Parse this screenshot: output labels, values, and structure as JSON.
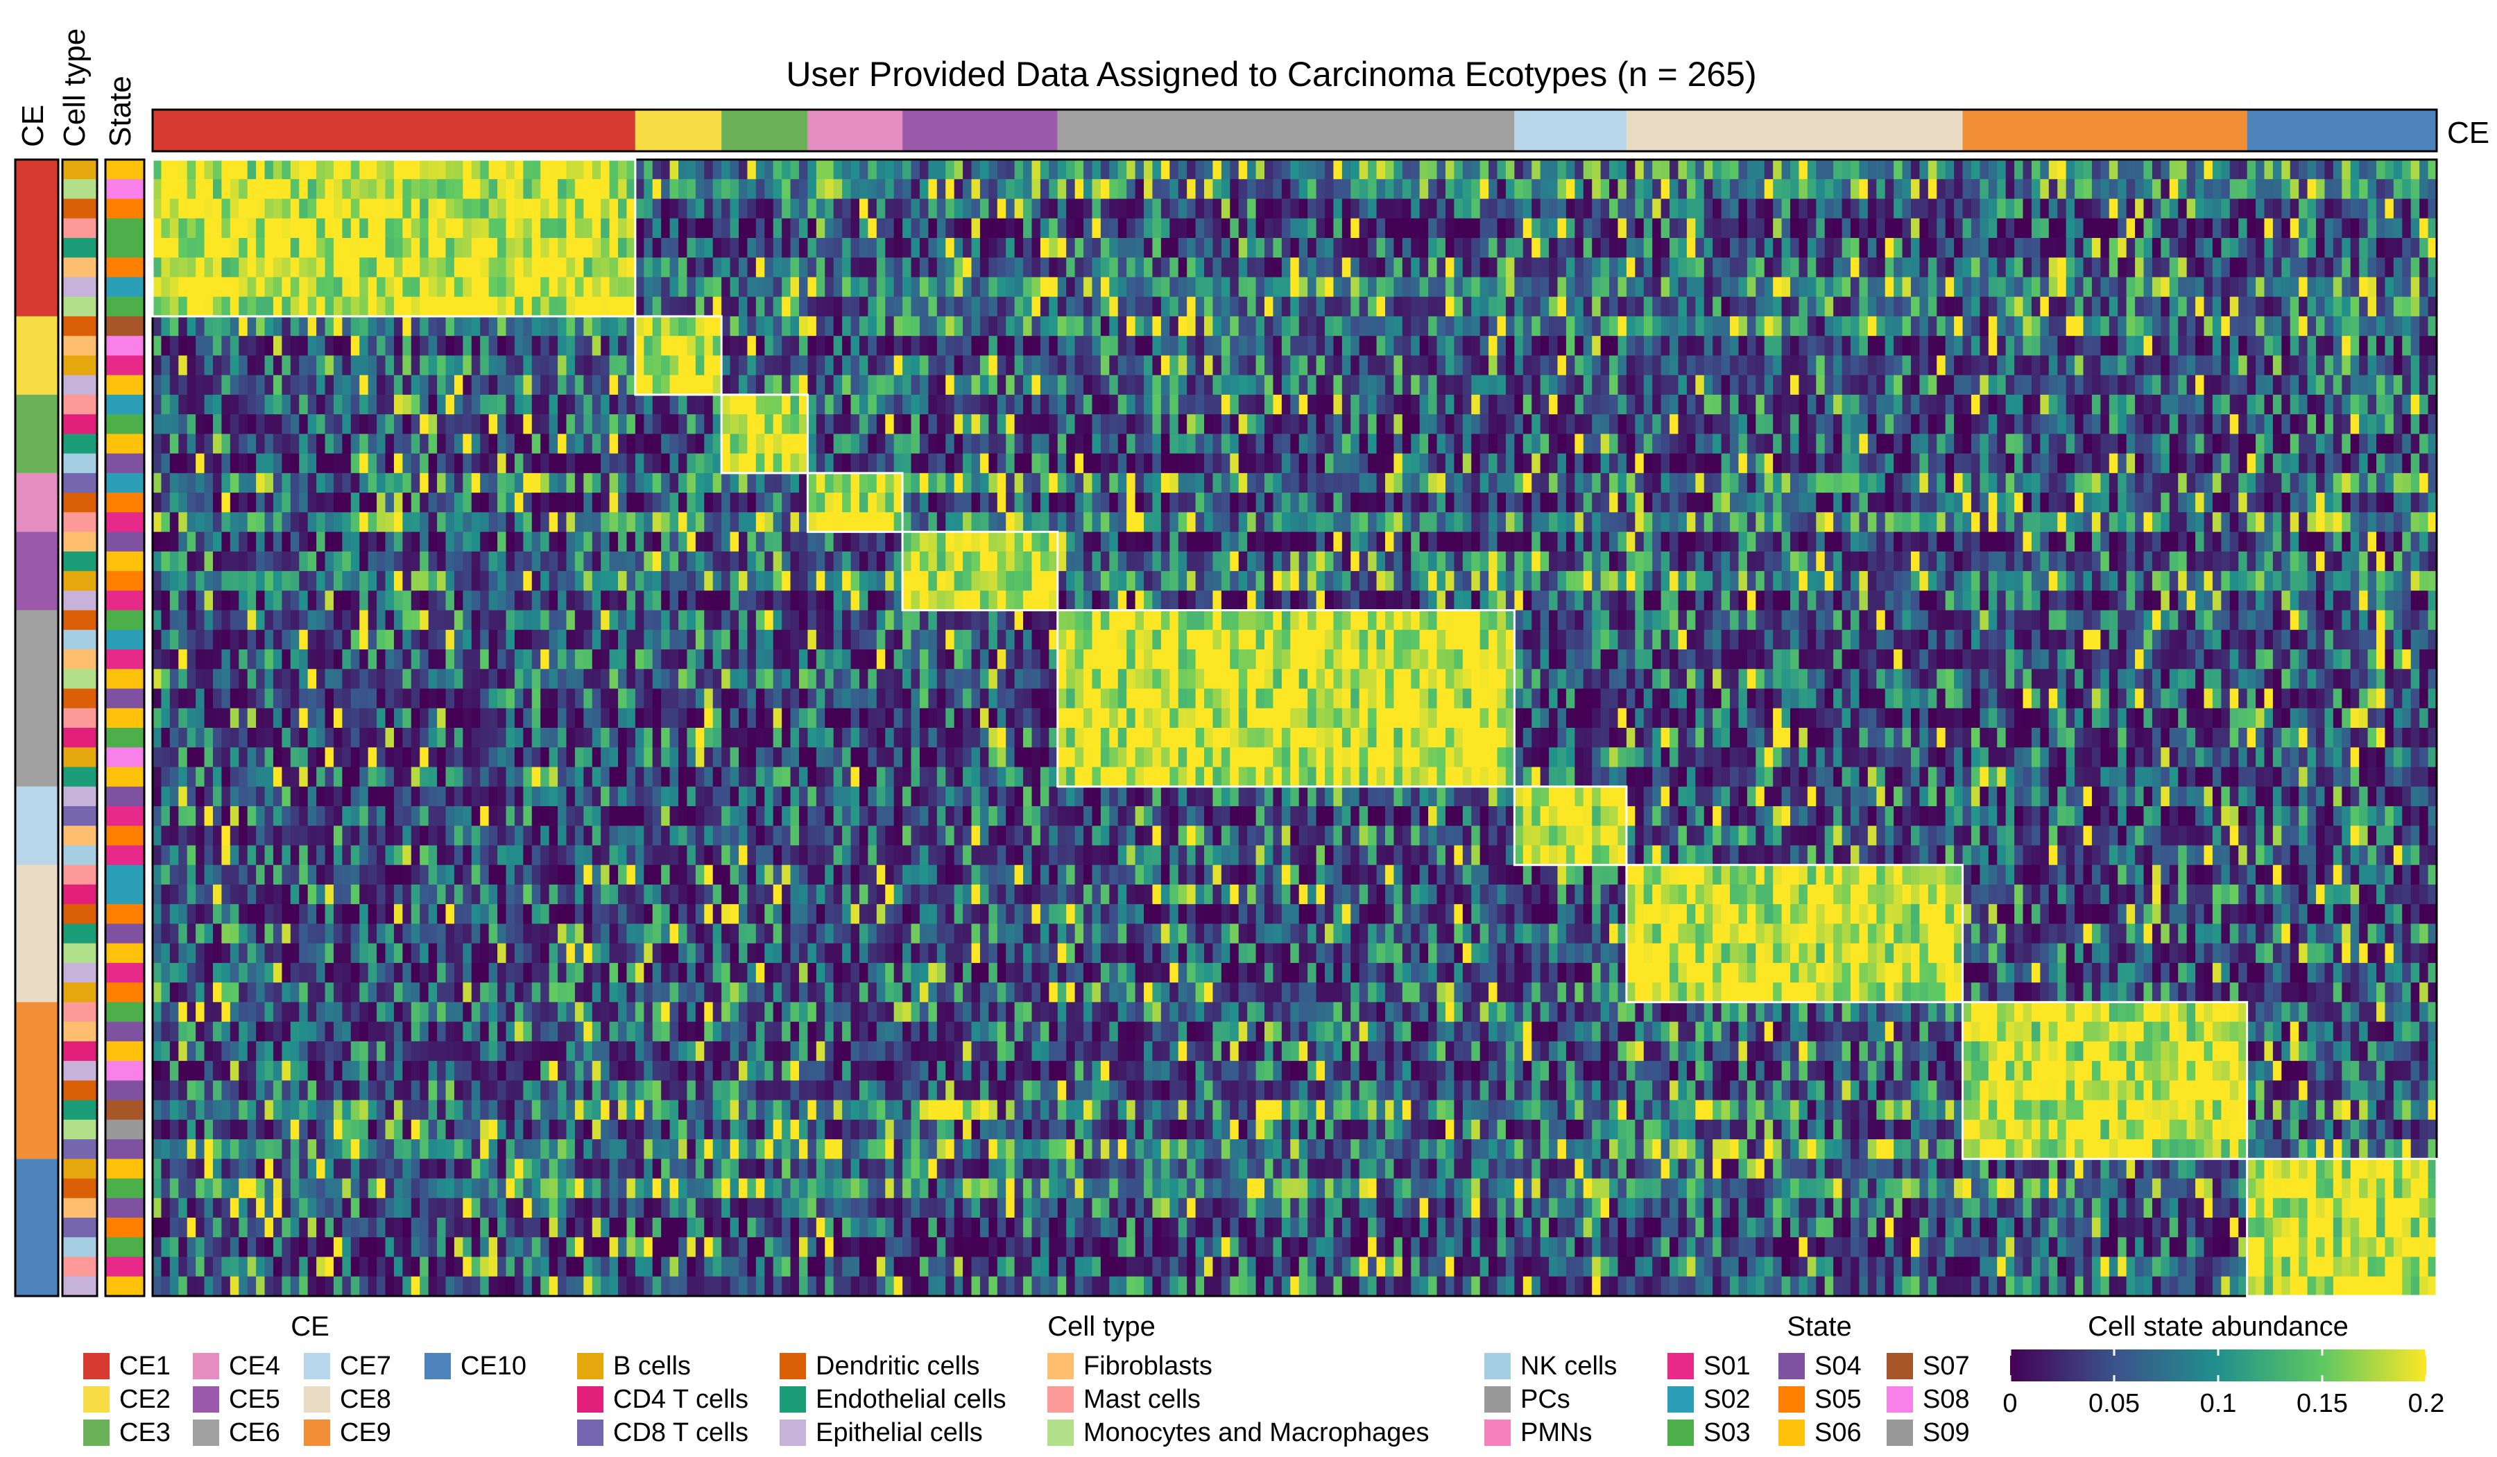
{
  "chart_data": {
    "type": "heatmap",
    "title": "User Provided Data Assigned to Carcinoma Ecotypes (n = 265)",
    "column_annotation_label": "CE",
    "row_annotation_labels": [
      "CE",
      "Cell type",
      "State"
    ],
    "ecotypes": [
      {
        "name": "CE1",
        "color": "#D73A31",
        "samples": 56,
        "states": 8
      },
      {
        "name": "CE2",
        "color": "#F7DC46",
        "samples": 10,
        "states": 4
      },
      {
        "name": "CE3",
        "color": "#6AB157",
        "samples": 10,
        "states": 4
      },
      {
        "name": "CE4",
        "color": "#E58DC1",
        "samples": 11,
        "states": 3
      },
      {
        "name": "CE5",
        "color": "#9B59AB",
        "samples": 18,
        "states": 4
      },
      {
        "name": "CE6",
        "color": "#A0A0A0",
        "samples": 53,
        "states": 9
      },
      {
        "name": "CE7",
        "color": "#B8D6EA",
        "samples": 13,
        "states": 4
      },
      {
        "name": "CE8",
        "color": "#EADBC5",
        "samples": 39,
        "states": 7
      },
      {
        "name": "CE9",
        "color": "#F28F36",
        "samples": 33,
        "states": 8
      },
      {
        "name": "CE10",
        "color": "#4C83BA",
        "samples": 22,
        "states": 7
      }
    ],
    "cell_types": [
      {
        "name": "B cells",
        "color": "#E4A70C"
      },
      {
        "name": "CD4 T cells",
        "color": "#E2207C"
      },
      {
        "name": "CD8 T cells",
        "color": "#7467B0"
      },
      {
        "name": "Dendritic cells",
        "color": "#DB5F07"
      },
      {
        "name": "Endothelial cells",
        "color": "#1B9E77"
      },
      {
        "name": "Epithelial cells",
        "color": "#C7B3D9"
      },
      {
        "name": "Fibroblasts",
        "color": "#FDBF6F"
      },
      {
        "name": "Mast cells",
        "color": "#FB9A99"
      },
      {
        "name": "Monocytes and Macrophages",
        "color": "#B2DF8A"
      },
      {
        "name": "NK cells",
        "color": "#A6CEE3"
      },
      {
        "name": "PCs",
        "color": "#999999"
      },
      {
        "name": "PMNs",
        "color": "#F781BF"
      }
    ],
    "states": [
      {
        "name": "S01",
        "color": "#E7298A"
      },
      {
        "name": "S02",
        "color": "#2C9FB8"
      },
      {
        "name": "S03",
        "color": "#4DAF4A"
      },
      {
        "name": "S04",
        "color": "#7E52A0"
      },
      {
        "name": "S05",
        "color": "#FF7F00"
      },
      {
        "name": "S06",
        "color": "#FFC20A"
      },
      {
        "name": "S07",
        "color": "#A65628"
      },
      {
        "name": "S08",
        "color": "#F781E8"
      },
      {
        "name": "S09",
        "color": "#999999"
      }
    ],
    "row_cell_types": [
      "B cells",
      "Monocytes and Macrophages",
      "Dendritic cells",
      "Mast cells",
      "Endothelial cells",
      "Fibroblasts",
      "Epithelial cells",
      "Monocytes and Macrophages",
      "Dendritic cells",
      "Fibroblasts",
      "B cells",
      "Epithelial cells",
      "Mast cells",
      "CD4 T cells",
      "Endothelial cells",
      "NK cells",
      "CD8 T cells",
      "Dendritic cells",
      "Mast cells",
      "Fibroblasts",
      "Endothelial cells",
      "B cells",
      "Epithelial cells",
      "Dendritic cells",
      "NK cells",
      "Fibroblasts",
      "Monocytes and Macrophages",
      "Dendritic cells",
      "Mast cells",
      "CD4 T cells",
      "B cells",
      "Endothelial cells",
      "Epithelial cells",
      "CD8 T cells",
      "Fibroblasts",
      "NK cells",
      "Mast cells",
      "CD4 T cells",
      "Dendritic cells",
      "Endothelial cells",
      "Monocytes and Macrophages",
      "Epithelial cells",
      "B cells",
      "Mast cells",
      "Fibroblasts",
      "CD4 T cells",
      "Epithelial cells",
      "Dendritic cells",
      "Endothelial cells",
      "Monocytes and Macrophages",
      "CD8 T cells",
      "B cells",
      "Dendritic cells",
      "Fibroblasts",
      "CD8 T cells",
      "NK cells",
      "Mast cells",
      "Epithelial cells",
      "Dendritic cells",
      "B cells",
      "CD8 T cells",
      "Epithelial cells",
      "Monocytes and Macrophages",
      "CD4 T cells",
      "Mast cells",
      "Dendritic cells",
      "Endothelial cells",
      "Mast cells",
      "CD8 T cells"
    ],
    "row_states": [
      "S06",
      "S08",
      "S05",
      "S03",
      "S03",
      "S05",
      "S02",
      "S03",
      "S07",
      "S08",
      "S01",
      "S06",
      "S02",
      "S03",
      "S06",
      "S04",
      "S02",
      "S05",
      "S01",
      "S04",
      "S06",
      "S05",
      "S01",
      "S03",
      "S02",
      "S01",
      "S06",
      "S04",
      "S06",
      "S03",
      "S08",
      "S06",
      "S04",
      "S01",
      "S05",
      "S01",
      "S02",
      "S02",
      "S05",
      "S04",
      "S06",
      "S01",
      "S05",
      "S03",
      "S04",
      "S06",
      "S08",
      "S04",
      "S07",
      "S09",
      "S04",
      "S06",
      "S03",
      "S04",
      "S05",
      "S03",
      "S01",
      "S06",
      "S01",
      "S03",
      "S04",
      "S04",
      "S01",
      "S02",
      "S01",
      "S03",
      "S01",
      "S01",
      "S04"
    ],
    "color_scale": {
      "title": "Cell state abundance",
      "min": 0,
      "max": 0.2,
      "ticks": [
        "0",
        "0.05",
        "0.1",
        "0.15",
        "0.2"
      ],
      "colors": [
        "#440154",
        "#3B528B",
        "#21908C",
        "#5DC863",
        "#FDE725"
      ]
    },
    "legend_titles": {
      "ce": "CE",
      "cell_type": "Cell type",
      "state": "State"
    },
    "pattern": "Block-diagonal: states belonging to each ecotype show high abundance (yellow) in samples assigned to that ecotype; off-block values are mostly low (purple)."
  }
}
